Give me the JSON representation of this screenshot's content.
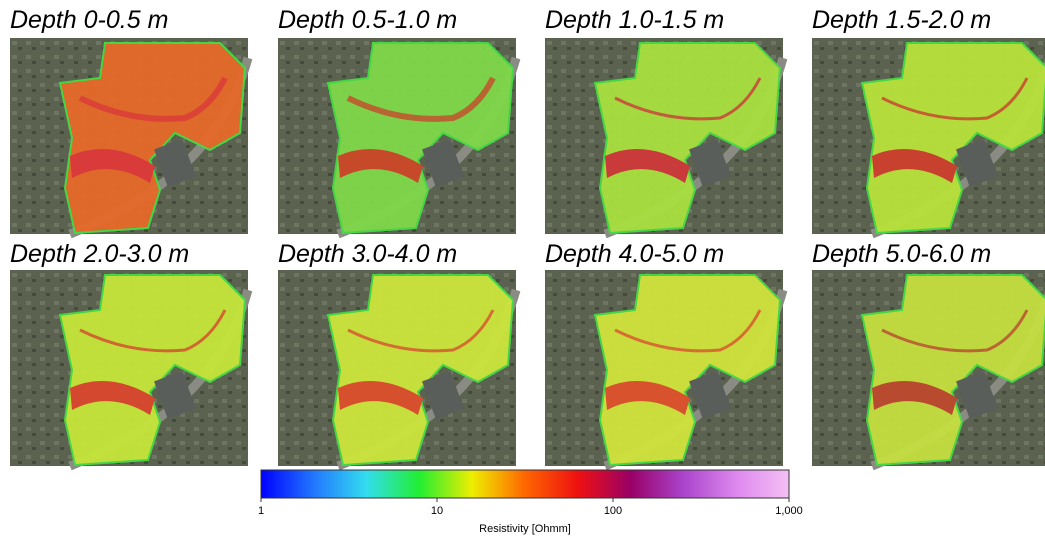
{
  "panels": [
    {
      "title": "Depth 0-0.5 m"
    },
    {
      "title": "Depth 0.5-1.0 m"
    },
    {
      "title": "Depth 1.0-1.5 m"
    },
    {
      "title": "Depth 1.5-2.0 m"
    },
    {
      "title": "Depth 2.0-3.0 m"
    },
    {
      "title": "Depth 3.0-4.0 m"
    },
    {
      "title": "Depth 4.0-5.0 m"
    },
    {
      "title": "Depth 5.0-6.0 m"
    }
  ],
  "colorbar": {
    "label": "Resistivity [Ohmm]",
    "scale": "log",
    "lim": [
      1,
      1000
    ],
    "ticks": [
      1,
      10,
      100,
      {
        "value": 1000,
        "label": "1,000"
      }
    ],
    "colors": [
      "#0000ff",
      "#2277ff",
      "#33ddee",
      "#22ee33",
      "#eeee00",
      "#ff6600",
      "#ee1111",
      "#990066",
      "#aa44cc",
      "#dd88ee",
      "#f4c0f4"
    ]
  }
}
